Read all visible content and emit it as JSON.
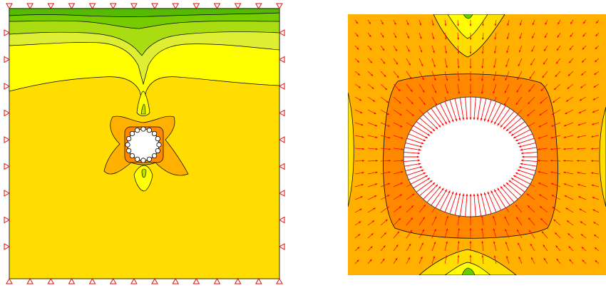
{
  "figure": {
    "left_panel": {
      "view": "full-model",
      "boundary_supports": "roller",
      "contour_colors": [
        "#66cc00",
        "#99dd00",
        "#ccee00",
        "#ffff00",
        "#ffdd00",
        "#ffb000",
        "#ff8800"
      ]
    },
    "right_panel": {
      "view": "zoom-around-opening",
      "vector_color": "#ff0000",
      "contour_colors": [
        "#ffb000",
        "#ff8800",
        "#ffdd00",
        "#66cc00"
      ]
    }
  }
}
